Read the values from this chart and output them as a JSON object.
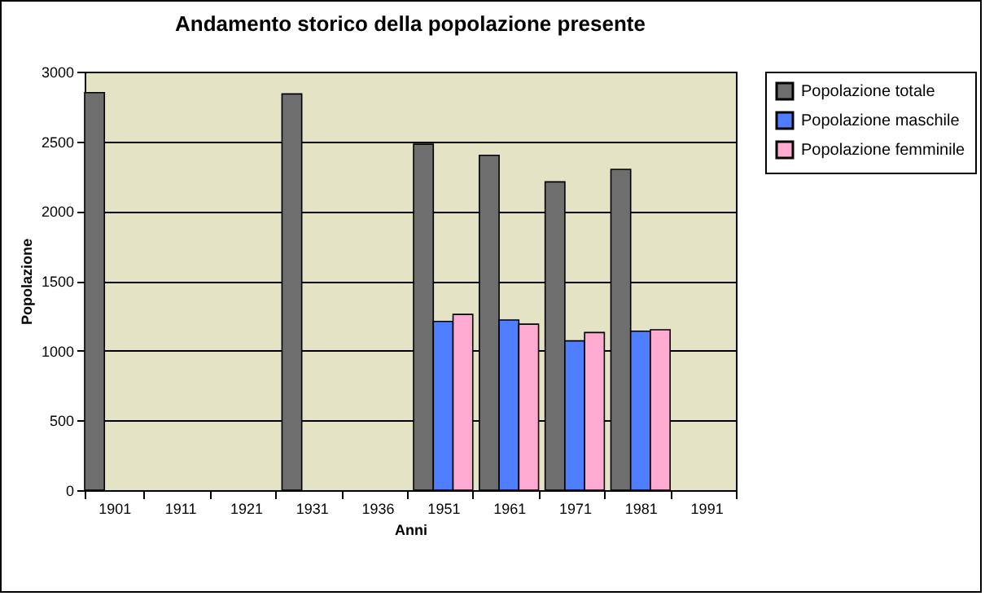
{
  "chart_data": {
    "type": "bar",
    "title": "Andamento storico della popolazione presente",
    "xlabel": "Anni",
    "ylabel": "Popolazione",
    "categories": [
      "1901",
      "1911",
      "1921",
      "1931",
      "1936",
      "1951",
      "1961",
      "1971",
      "1981",
      "1991"
    ],
    "series": [
      {
        "name": "Popolazione totale",
        "color": "#6e6e6e",
        "values": [
          2850,
          null,
          null,
          2840,
          null,
          2480,
          2400,
          2210,
          2300,
          null
        ]
      },
      {
        "name": "Popolazione maschile",
        "color": "#4f7fff",
        "values": [
          null,
          null,
          null,
          null,
          null,
          1210,
          1220,
          1070,
          1140,
          null
        ]
      },
      {
        "name": "Popolazione femminile",
        "color": "#ffaad0",
        "values": [
          null,
          null,
          null,
          null,
          null,
          1260,
          1190,
          1130,
          1150,
          null
        ]
      }
    ],
    "ylim": [
      0,
      3000
    ],
    "yticks": [
      0,
      500,
      1000,
      1500,
      2000,
      2500,
      3000
    ],
    "grid": "y",
    "legend": "right"
  }
}
